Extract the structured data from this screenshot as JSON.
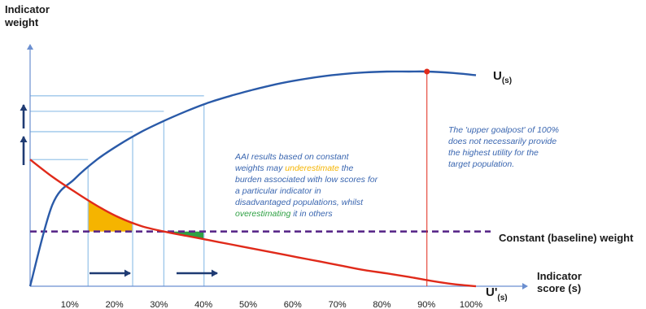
{
  "chart_data": {
    "type": "line",
    "ylabel_lines": [
      "Indicator",
      "weight"
    ],
    "xlabel_lines": [
      "Indicator",
      "score (s)"
    ],
    "x_ticks": [
      "10%",
      "20%",
      "30%",
      "40%",
      "50%",
      "60%",
      "70%",
      "80%",
      "90%",
      "100%"
    ],
    "xlim": [
      0,
      100
    ],
    "series": [
      {
        "name": "U",
        "subscript": "(s)",
        "color": "#2a5aa8"
      },
      {
        "name": "U'",
        "subscript": "(s)",
        "color": "#e02a1a"
      }
    ],
    "utility_curve": {
      "x": [
        0,
        5,
        10,
        15,
        20,
        25,
        30,
        35,
        40,
        45,
        50,
        55,
        60,
        65,
        70,
        75,
        80,
        85,
        89,
        95,
        100
      ],
      "y": [
        0,
        38,
        50,
        59,
        66,
        72,
        77,
        81.5,
        85.5,
        88.7,
        91.5,
        94,
        96,
        97.6,
        98.8,
        99.6,
        100,
        100,
        100,
        99.3,
        98.3
      ]
    },
    "derivative_curve": {
      "x": [
        0,
        5,
        10,
        15,
        20,
        25,
        30,
        35,
        40,
        45,
        50,
        55,
        60,
        65,
        70,
        75,
        80,
        85,
        90,
        95,
        100
      ],
      "y": [
        59,
        51,
        44,
        37.5,
        32,
        28,
        25.5,
        23.5,
        21.5,
        19.5,
        17.5,
        15.5,
        13.5,
        11.5,
        9.5,
        7.5,
        6,
        4.3,
        2.5,
        1,
        0
      ]
    },
    "constant_weight": {
      "y": 25.5,
      "label": "Constant (baseline) weight",
      "color": "#5a2a8a"
    },
    "upper_goalpost": {
      "x": 89,
      "y": 100,
      "color": "#e02a1a"
    },
    "underestimate_region": {
      "x": [
        13,
        23
      ],
      "color": "#f5b400"
    },
    "overestimate_region": {
      "x": [
        30,
        39
      ],
      "color": "#2ea043"
    },
    "guide_x": [
      13,
      23,
      30,
      39
    ],
    "guide_y": [
      59,
      72,
      81.5,
      88.7
    ],
    "annotation_left": {
      "line1": "AAI results based on constant",
      "line2_pre": "weights may ",
      "line2_hl": "underestimate",
      "line2_post": " the",
      "line3": "burden associated with low scores for",
      "line4": "a particular indicator in",
      "line5": "disadvantaged populations, whilst",
      "line6_hl": "overestimating",
      "line6_post": " it in others",
      "hl1_color": "#f5b400",
      "hl2_color": "#2ea043"
    },
    "annotation_right": {
      "lines": [
        "The 'upper goalpost' of 100%",
        "does not necessarily provide",
        "the highest utility for the",
        "target population."
      ]
    }
  }
}
